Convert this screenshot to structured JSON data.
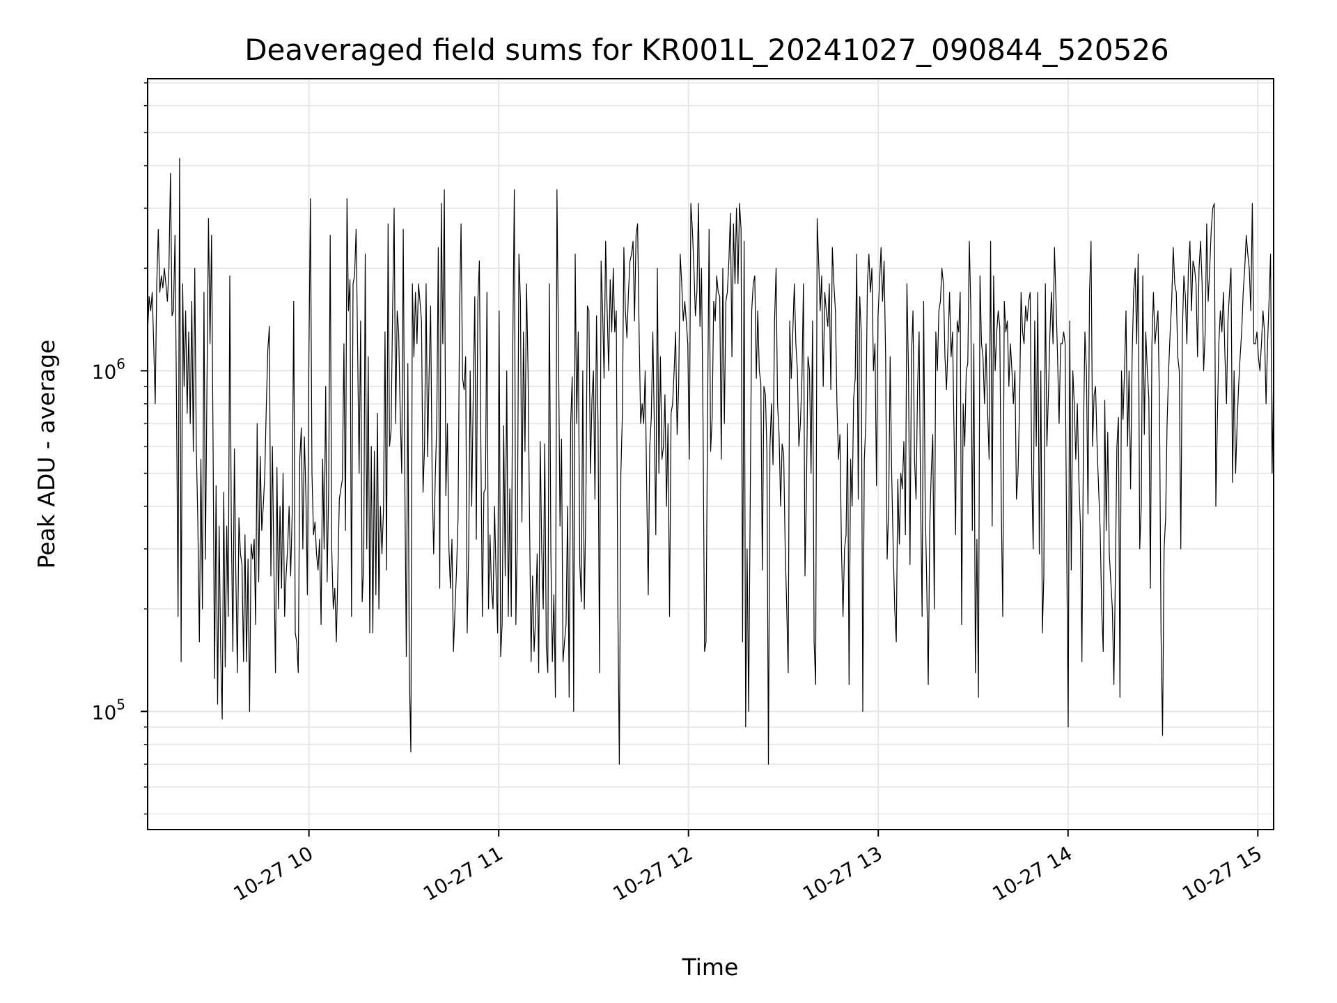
{
  "chart_data": {
    "type": "line",
    "title": "Deaveraged field sums for KR001L_20241027_090844_520526",
    "xlabel": "Time",
    "ylabel": "Peak ADU - average",
    "yscale": "log",
    "ylim": [
      45000,
      7200000
    ],
    "xlim": [
      "2024-10-27 09:09",
      "2024-10-27 15:05"
    ],
    "grid": true,
    "line_color": "#000000",
    "x_tick_labels": [
      {
        "t": "2024-10-27 10:00",
        "label": "10-27 10"
      },
      {
        "t": "2024-10-27 11:00",
        "label": "10-27 11"
      },
      {
        "t": "2024-10-27 12:00",
        "label": "10-27 12"
      },
      {
        "t": "2024-10-27 13:00",
        "label": "10-27 13"
      },
      {
        "t": "2024-10-27 14:00",
        "label": "10-27 14"
      },
      {
        "t": "2024-10-27 15:00",
        "label": "10-27 15"
      }
    ],
    "y_tick_labels": [
      {
        "value": 100000,
        "base": "10",
        "exp": "5"
      },
      {
        "value": 1000000,
        "base": "10",
        "exp": "6"
      }
    ],
    "series": [
      {
        "x_start": "2024-10-27 09:09",
        "x_end": "2024-10-27 15:05",
        "values": [
          1300000,
          1650000,
          1500000,
          1700000,
          1200000,
          800000,
          1800000,
          2600000,
          1700000,
          1900000,
          1750000,
          2000000,
          1800000,
          1600000,
          2000000,
          3800000,
          1450000,
          1500000,
          2500000,
          800000,
          190000,
          4200000,
          140000,
          1800000,
          900000,
          1500000,
          750000,
          1300000,
          700000,
          1600000,
          580000,
          2000000,
          600000,
          360000,
          160000,
          550000,
          200000,
          1700000,
          280000,
          900000,
          2800000,
          1200000,
          2500000,
          600000,
          125000,
          460000,
          105000,
          350000,
          150000,
          95000,
          440000,
          135000,
          350000,
          190000,
          1900000,
          350000,
          150000,
          590000,
          250000,
          130000,
          370000,
          290000,
          270000,
          140000,
          330000,
          140000,
          280000,
          100000,
          310000,
          280000,
          320000,
          180000,
          700000,
          240000,
          560000,
          340000,
          400000,
          500000,
          780000,
          1150000,
          1350000,
          250000,
          600000,
          260000,
          130000,
          520000,
          200000,
          400000,
          230000,
          500000,
          190000,
          250000,
          300000,
          400000,
          250000,
          380000,
          1600000,
          170000,
          160000,
          130000,
          550000,
          680000,
          300000,
          640000,
          430000,
          220000,
          1100000,
          3200000,
          500000,
          330000,
          360000,
          290000,
          260000,
          320000,
          180000,
          550000,
          300000,
          900000,
          240000,
          450000,
          2500000,
          300000,
          200000,
          230000,
          160000,
          250000,
          420000,
          450000,
          480000,
          1200000,
          340000,
          3200000,
          1500000,
          1850000,
          190000,
          1800000,
          1900000,
          2600000,
          1200000,
          500000,
          1400000,
          210000,
          270000,
          2200000,
          300000,
          1100000,
          170000,
          600000,
          170000,
          580000,
          220000,
          750000,
          200000,
          400000,
          290000,
          390000,
          1300000,
          260000,
          2700000,
          600000,
          670000,
          1500000,
          3000000,
          700000,
          1500000,
          1300000,
          750000,
          500000,
          2600000,
          480000,
          145000,
          1050000,
          130000,
          76000,
          1800000,
          1100000,
          1700000,
          1200000,
          1800000,
          1600000,
          1400000,
          440000,
          600000,
          1800000,
          560000,
          1000000,
          1550000,
          480000,
          290000,
          480000,
          700000,
          2300000,
          230000,
          3100000,
          1200000,
          3400000,
          430000,
          700000,
          300000,
          230000,
          320000,
          150000,
          200000,
          260000,
          370000,
          1500000,
          2700000,
          950000,
          880000,
          1100000,
          170000,
          300000,
          1000000,
          400000,
          850000,
          1650000,
          320000,
          1600000,
          2100000,
          620000,
          190000,
          440000,
          450000,
          1700000,
          200000,
          330000,
          230000,
          200000,
          400000,
          250000,
          170000,
          1500000,
          145000,
          180000,
          690000,
          250000,
          1000000,
          190000,
          450000,
          190000,
          1200000,
          3400000,
          180000,
          330000,
          2200000,
          1600000,
          360000,
          1300000,
          580000,
          1800000,
          1000000,
          360000,
          140000,
          250000,
          150000,
          190000,
          290000,
          130000,
          620000,
          300000,
          200000,
          610000,
          155000,
          130000,
          1800000,
          290000,
          140000,
          220000,
          110000,
          3400000,
          1200000,
          350000,
          630000,
          140000,
          160000,
          180000,
          400000,
          110000,
          700000,
          960000,
          100000,
          2200000,
          700000,
          1300000,
          270000,
          210000,
          1000000,
          200000,
          400000,
          1550000,
          1500000,
          500000,
          830000,
          1000000,
          420000,
          1450000,
          700000,
          130000,
          2100000,
          1500000,
          950000,
          2400000,
          1500000,
          1000000,
          1850000,
          1300000,
          2000000,
          1300000,
          1500000,
          210000,
          70000,
          500000,
          750000,
          2300000,
          1500000,
          1250000,
          1700000,
          2100000,
          2200000,
          2400000,
          1400000,
          2500000,
          2700000,
          1300000,
          700000,
          800000,
          700000,
          1000000,
          450000,
          220000,
          600000,
          730000,
          1300000,
          700000,
          330000,
          2000000,
          500000,
          1100000,
          550000,
          600000,
          850000,
          400000,
          700000,
          190000,
          750000,
          800000,
          1000000,
          1300000,
          650000,
          900000,
          2200000,
          1800000,
          1400000,
          1600000,
          1400000,
          1200000,
          550000,
          3100000,
          2600000,
          2000000,
          1450000,
          1700000,
          3100000,
          1350000,
          2000000,
          700000,
          150000,
          160000,
          750000,
          2600000,
          580000,
          730000,
          1600000,
          1400000,
          1900000,
          1700000,
          1650000,
          550000,
          2000000,
          700000,
          1600000,
          1700000,
          2100000,
          2900000,
          1100000,
          2700000,
          1800000,
          3000000,
          1800000,
          3100000,
          2600000,
          160000,
          2400000,
          90000,
          300000,
          100000,
          400000,
          1500000,
          1800000,
          1900000,
          950000,
          1500000,
          1000000,
          920000,
          260000,
          900000,
          850000,
          580000,
          70000,
          600000,
          800000,
          530000,
          1400000,
          2000000,
          800000,
          650000,
          400000,
          610000,
          570000,
          300000,
          200000,
          130000,
          1400000,
          950000,
          1300000,
          1800000,
          1200000,
          1000000,
          600000,
          700000,
          950000,
          1800000,
          250000,
          460000,
          1100000,
          1000000,
          500000,
          1400000,
          160000,
          120000,
          2800000,
          2100000,
          1500000,
          1900000,
          900000,
          1700000,
          1500000,
          1350000,
          1800000,
          880000,
          2300000,
          1800000,
          1500000,
          800000,
          550000,
          650000,
          300000,
          190000,
          300000,
          330000,
          700000,
          120000,
          550000,
          400000,
          830000,
          950000,
          2200000,
          420000,
          1650000,
          1300000,
          100000,
          550000,
          700000,
          1800000,
          2200000,
          1700000,
          2000000,
          1000000,
          1200000,
          460000,
          1450000,
          1800000,
          2300000,
          1600000,
          2100000,
          1100000,
          280000,
          400000,
          1100000,
          500000,
          300000,
          200000,
          160000,
          480000,
          310000,
          500000,
          450000,
          620000,
          330000,
          1800000,
          1000000,
          270000,
          1100000,
          1500000,
          550000,
          420000,
          900000,
          1300000,
          430000,
          190000,
          1600000,
          410000,
          240000,
          120000,
          350000,
          500000,
          650000,
          200000,
          1300000,
          1000000,
          1500000,
          1600000,
          2000000,
          1800000,
          1100000,
          880000,
          1200000,
          1700000,
          1100000,
          1300000,
          650000,
          330000,
          1400000,
          1300000,
          1700000,
          180000,
          800000,
          600000,
          1000000,
          1050000,
          2400000,
          1500000,
          340000,
          1200000,
          130000,
          320000,
          110000,
          1900000,
          1200000,
          1100000,
          800000,
          1200000,
          770000,
          550000,
          2400000,
          350000,
          1900000,
          1000000,
          1300000,
          1500000,
          1350000,
          400000,
          190000,
          1600000,
          1300000,
          1400000,
          900000,
          1200000,
          1000000,
          800000,
          1000000,
          420000,
          500000,
          780000,
          1700000,
          1300000,
          1200000,
          1550000,
          1400000,
          1600000,
          1700000,
          500000,
          300000,
          1400000,
          600000,
          1700000,
          290000,
          1000000,
          170000,
          250000,
          1800000,
          600000,
          850000,
          1300000,
          1700000,
          1200000,
          2300000,
          1600000,
          1100000,
          700000,
          1200000,
          1200000,
          1300000,
          1200000,
          310000,
          90000,
          1400000,
          260000,
          1000000,
          800000,
          550000,
          800000,
          480000,
          350000,
          140000,
          650000,
          1300000,
          1000000,
          380000,
          1700000,
          2400000,
          600000,
          850000,
          900000,
          600000,
          450000,
          340000,
          200000,
          150000,
          820000,
          340000,
          660000,
          290000,
          240000,
          200000,
          120000,
          250000,
          600000,
          730000,
          110000,
          1000000,
          720000,
          1000000,
          1500000,
          600000,
          1000000,
          450000,
          1100000,
          1700000,
          2000000,
          1200000,
          2200000,
          300000,
          400000,
          1900000,
          650000,
          1300000,
          1000000,
          830000,
          230000,
          1200000,
          1700000,
          1200000,
          1350000,
          1500000,
          800000,
          170000,
          85000,
          300000,
          370000,
          700000,
          1000000,
          1300000,
          1600000,
          2300000,
          1800000,
          1700000,
          1100000,
          1000000,
          300000,
          1300000,
          1900000,
          1650000,
          1200000,
          2000000,
          2400000,
          1500000,
          2100000,
          2000000,
          1800000,
          1100000,
          2000000,
          2400000,
          1800000,
          1000000,
          1300000,
          2700000,
          1600000,
          2000000,
          2600000,
          3000000,
          3100000,
          400000,
          700000,
          1200000,
          1500000,
          1300000,
          1700000,
          1100000,
          800000,
          1400000,
          1700000,
          2000000,
          470000,
          1000000,
          500000,
          700000,
          900000,
          1100000,
          1300000,
          1700000,
          2000000,
          2500000,
          2200000,
          2000000,
          1500000,
          3100000,
          1200000,
          1200000,
          1300000,
          1100000,
          1000000,
          1200000,
          1500000,
          1300000,
          800000,
          1200000,
          1600000,
          2200000,
          500000,
          1000000
        ]
      }
    ]
  }
}
